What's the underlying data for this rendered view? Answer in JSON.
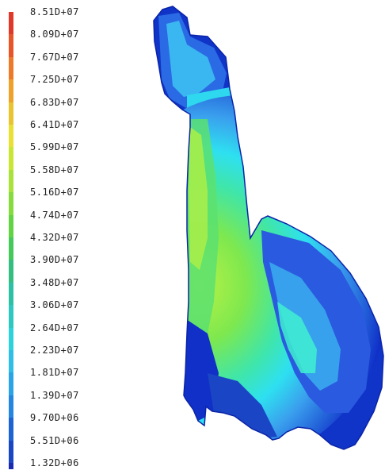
{
  "legend": {
    "labels": [
      "8.51D+07",
      "8.09D+07",
      "7.67D+07",
      "7.25D+07",
      "6.83D+07",
      "6.41D+07",
      "5.99D+07",
      "5.58D+07",
      "5.16D+07",
      "4.74D+07",
      "4.32D+07",
      "3.90D+07",
      "3.48D+07",
      "3.06D+07",
      "2.64D+07",
      "2.23D+07",
      "1.81D+07",
      "1.39D+07",
      "9.70D+06",
      "5.51D+06",
      "1.32D+06"
    ],
    "colors": [
      "#e0392a",
      "#e8552a",
      "#ec7a2a",
      "#eea22c",
      "#e9c330",
      "#e8e032",
      "#c9e635",
      "#a8e23a",
      "#86dc3d",
      "#62d444",
      "#45c95a",
      "#34be82",
      "#2cc0a4",
      "#2dc8c2",
      "#2ed2dc",
      "#2fbfe6",
      "#2aa4e6",
      "#2486e0",
      "#1d63d4",
      "#1a45c4",
      "#1a2ab0"
    ]
  },
  "contour_palette": {
    "deep_blue": "#1030c8",
    "blue": "#2a5ae0",
    "light_blue": "#3aa0ee",
    "cyan": "#2ee0f0",
    "aqua": "#40f0d0",
    "green": "#50e070",
    "lime": "#a8f04a",
    "yellow": "#e0f04a"
  }
}
